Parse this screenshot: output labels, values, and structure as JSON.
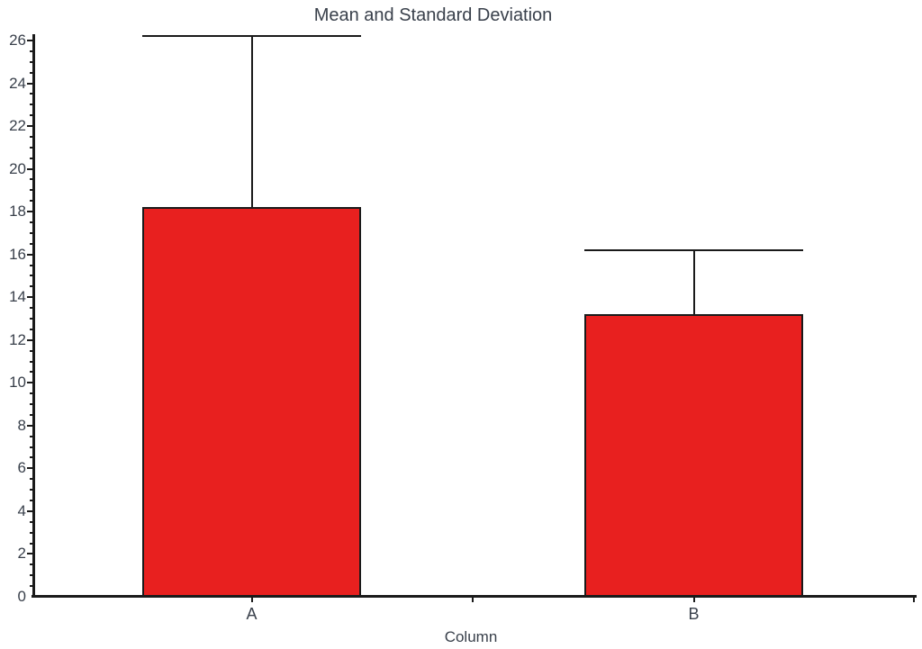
{
  "chart_data": {
    "type": "bar",
    "title": "Mean and Standard Deviation",
    "xlabel": "Column",
    "ylabel": "",
    "categories": [
      "A",
      "B"
    ],
    "series": [
      {
        "name": "Mean",
        "values": [
          18.2,
          13.2
        ]
      }
    ],
    "error_bars": {
      "kind": "standard-deviation",
      "upper": [
        8.0,
        3.0
      ],
      "lower": [
        0,
        0
      ],
      "cap_full_bar_width": true
    },
    "ylim": [
      0,
      26.3
    ],
    "y_tick_labels": [
      "0",
      "2",
      "4",
      "6",
      "8",
      "10",
      "12",
      "14",
      "16",
      "18",
      "20",
      "22",
      "24",
      "26"
    ],
    "y_major_step": 2,
    "y_minor_step": 0.5,
    "grid": false,
    "legend": "none",
    "colors": {
      "bar_fill": "#e8201f",
      "bar_border": "#1a1a1a",
      "axis": "#1a1a1a",
      "error_bar": "#1a1a1a",
      "text": "#39404b"
    }
  }
}
